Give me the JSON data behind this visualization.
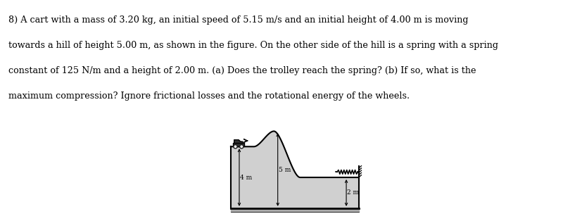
{
  "text_line1": "8) A cart with a mass of 3.20 kg, an initial speed of 5.15 m/s and an initial height of 4.00 m is moving",
  "text_line2": "towards a hill of height 5.00 m, as shown in the figure. On the other side of the hill is a spring with a spring",
  "text_line3": "constant of 125 N/m and a height of 2.00 m. (a) Does the trolley reach the spring? (b) If so, what is the",
  "text_line4": "maximum compression? Ignore frictional losses and the rotational energy of the wheels.",
  "text_fontsize": 9.2,
  "bg_color": "#ffffff",
  "label_4m": "4 m",
  "label_5m": "5 m",
  "label_2m": "2 m",
  "terrain_fill": "#d0d0d0",
  "ground_fill": "#aaaaaa"
}
